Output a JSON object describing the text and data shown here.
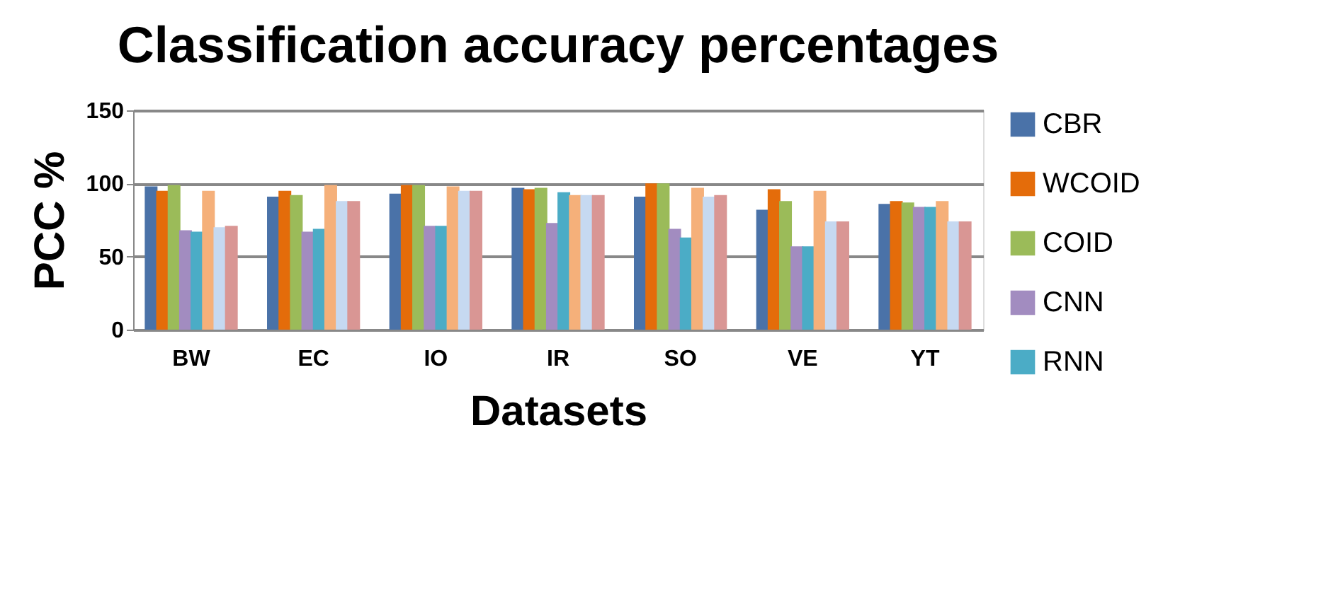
{
  "chart_data": {
    "type": "bar",
    "title": "Classification accuracy percentages",
    "xlabel": "Datasets",
    "ylabel": "PCC %",
    "categories": [
      "BW",
      "EC",
      "IO",
      "IR",
      "SO",
      "VE",
      "YT"
    ],
    "series": [
      {
        "name": "CBR",
        "color": "#4a72a8",
        "values": [
          98,
          91,
          93,
          97,
          91,
          82,
          86
        ]
      },
      {
        "name": "WCOID",
        "color": "#e46c0a",
        "values": [
          95,
          95,
          99,
          96,
          100,
          96,
          88
        ]
      },
      {
        "name": "COID",
        "color": "#9bbb59",
        "values": [
          99,
          92,
          99,
          97,
          100,
          88,
          87
        ]
      },
      {
        "name": "CNN",
        "color": "#a28cc0",
        "values": [
          68,
          67,
          71,
          73,
          69,
          57,
          84
        ]
      },
      {
        "name": "RNN",
        "color": "#4bacc6",
        "values": [
          67,
          69,
          71,
          94,
          63,
          57,
          84
        ]
      },
      {
        "color": "#f5b07a",
        "values": [
          95,
          99,
          98,
          92,
          97,
          95,
          88
        ]
      },
      {
        "color": "#c6d9f1",
        "values": [
          70,
          88,
          95,
          92,
          91,
          74,
          74
        ]
      },
      {
        "color": "#d99694",
        "values": [
          71,
          88,
          95,
          92,
          92,
          74,
          74
        ]
      }
    ],
    "ylim": [
      0,
      150
    ],
    "yticks": [
      0,
      50,
      100,
      150
    ],
    "grid": "y",
    "legend": "right"
  }
}
